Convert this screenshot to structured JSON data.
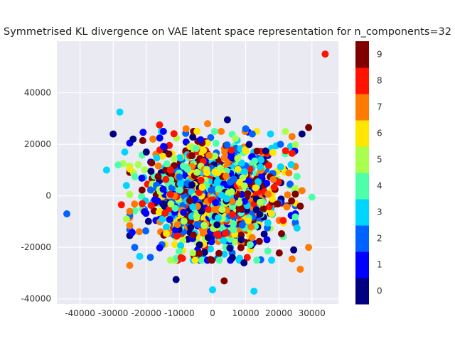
{
  "chart_data": {
    "type": "scatter",
    "title": "Symmetrised KL divergence on VAE latent space representation for n_components=32",
    "xlabel": "",
    "ylabel": "",
    "xlim": [
      -47000,
      38000
    ],
    "ylim": [
      -42000,
      60000
    ],
    "x_ticks": [
      "-40000",
      "-30000",
      "-20000",
      "-10000",
      "0",
      "10000",
      "20000",
      "30000"
    ],
    "y_ticks": [
      "-40000",
      "-20000",
      "0",
      "20000",
      "40000"
    ],
    "grid": true,
    "background": "#eaeaf2",
    "colormap": "jet",
    "colorbar": {
      "labels": [
        "0",
        "1",
        "2",
        "3",
        "4",
        "5",
        "6",
        "7",
        "8",
        "9"
      ],
      "colors": [
        "#000080",
        "#0000ff",
        "#0063ff",
        "#00d5ff",
        "#4effa9",
        "#a9ff4e",
        "#ffe600",
        "#ff7a00",
        "#ff1300",
        "#800000"
      ]
    },
    "cluster": {
      "approx_point_count": 1500,
      "center": [
        0,
        0
      ],
      "spread_std": [
        10000,
        10000
      ],
      "dense_extent_x": [
        -25000,
        25000
      ],
      "dense_extent_y": [
        -25000,
        25000
      ]
    },
    "points": [
      {
        "x": 34000,
        "y": 55000,
        "label": 8
      },
      {
        "x": -44000,
        "y": -7000,
        "label": 2
      },
      {
        "x": -28000,
        "y": 32500,
        "label": 3
      },
      {
        "x": -32000,
        "y": 10000,
        "label": 3
      },
      {
        "x": -30000,
        "y": 24000,
        "label": 0
      },
      {
        "x": -24000,
        "y": 22000,
        "label": 0
      },
      {
        "x": -16000,
        "y": 27500,
        "label": 8
      },
      {
        "x": -25000,
        "y": -27000,
        "label": 7
      },
      {
        "x": -11000,
        "y": -32500,
        "label": 0
      },
      {
        "x": 3500,
        "y": -33000,
        "label": 9
      },
      {
        "x": 0,
        "y": -36500,
        "label": 3
      },
      {
        "x": 12500,
        "y": -37000,
        "label": 3
      },
      {
        "x": 26500,
        "y": -28500,
        "label": 7
      },
      {
        "x": 29000,
        "y": -20000,
        "label": 7
      },
      {
        "x": 30000,
        "y": -500,
        "label": 4
      },
      {
        "x": 29000,
        "y": 26500,
        "label": 9
      },
      {
        "x": 27000,
        "y": 24000,
        "label": 0
      },
      {
        "x": 24000,
        "y": 23000,
        "label": 7
      },
      {
        "x": 22000,
        "y": 25000,
        "label": 5
      },
      {
        "x": 24000,
        "y": 16500,
        "label": 8
      },
      {
        "x": 20500,
        "y": 20000,
        "label": 2
      },
      {
        "x": 10000,
        "y": 26000,
        "label": 2
      },
      {
        "x": 4500,
        "y": 29500,
        "label": 0
      },
      {
        "x": -1500,
        "y": 28000,
        "label": 7
      },
      {
        "x": -8000,
        "y": 26000,
        "label": 7
      },
      {
        "x": -26000,
        "y": -9000,
        "label": 5
      },
      {
        "x": -26000,
        "y": 4000,
        "label": 3
      },
      {
        "x": -27500,
        "y": -3500,
        "label": 8
      },
      {
        "x": -23500,
        "y": -20000,
        "label": 2
      },
      {
        "x": -22000,
        "y": -23500,
        "label": 3
      },
      {
        "x": -9500,
        "y": -24000,
        "label": 8
      },
      {
        "x": 6000,
        "y": -24000,
        "label": 0
      },
      {
        "x": 9500,
        "y": -26000,
        "label": 0
      },
      {
        "x": 24000,
        "y": -24500,
        "label": 7
      },
      {
        "x": 24500,
        "y": -21000,
        "label": 0
      },
      {
        "x": 25500,
        "y": -12500,
        "label": 3
      },
      {
        "x": 26500,
        "y": -4000,
        "label": 9
      },
      {
        "x": 27000,
        "y": 2000,
        "label": 7
      },
      {
        "x": 25500,
        "y": 7500,
        "label": 4
      },
      {
        "x": 12000,
        "y": 24000,
        "label": 2
      },
      {
        "x": 17500,
        "y": 24000,
        "label": 3
      },
      {
        "x": -18000,
        "y": 22000,
        "label": 7
      },
      {
        "x": -20000,
        "y": 17000,
        "label": 0
      },
      {
        "x": -26500,
        "y": 17000,
        "label": 3
      },
      {
        "x": -27000,
        "y": 12500,
        "label": 5
      },
      {
        "x": -28500,
        "y": 12000,
        "label": 4
      }
    ]
  }
}
